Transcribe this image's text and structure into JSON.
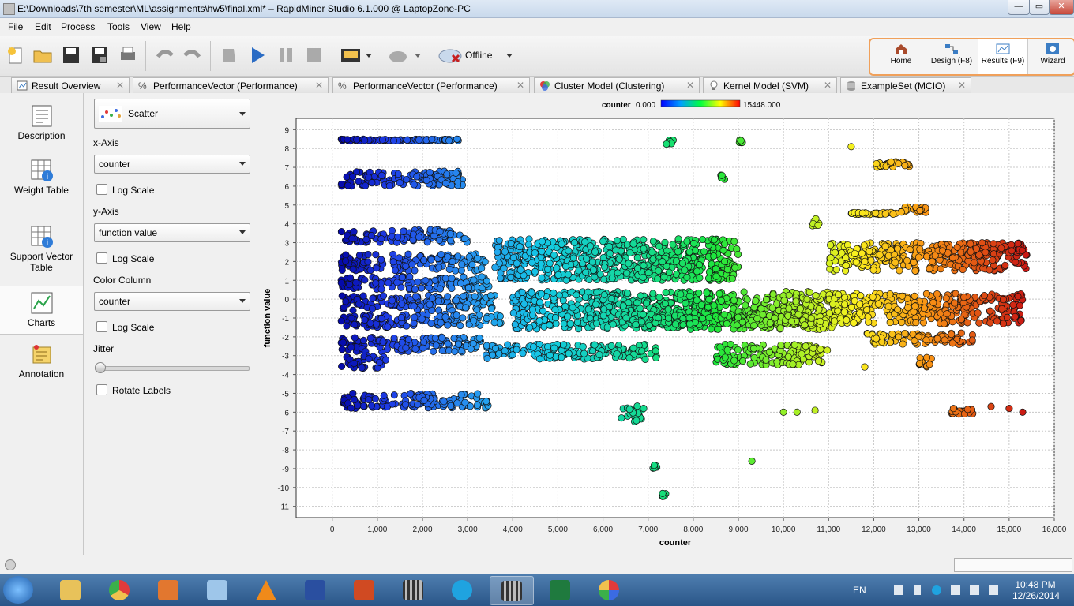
{
  "window": {
    "title": "E:\\Downloads\\7th semester\\ML\\assignments\\hw5\\final.xml* – RapidMiner Studio 6.1.000 @ LaptopZone-PC",
    "min": "—",
    "max": "▭",
    "close": "✕"
  },
  "menu": [
    "File",
    "Edit",
    "Process",
    "Tools",
    "View",
    "Help"
  ],
  "toolbar": {
    "offline_label": "Offline"
  },
  "perspectives": [
    {
      "label": "Home",
      "icon": "home-icon"
    },
    {
      "label": "Design (F8)",
      "icon": "design-icon"
    },
    {
      "label": "Results (F9)",
      "icon": "results-icon"
    },
    {
      "label": "Wizard",
      "icon": "wizard-icon"
    }
  ],
  "tabs": [
    {
      "label": "Result Overview"
    },
    {
      "label": "PerformanceVector (Performance)"
    },
    {
      "label": "PerformanceVector (Performance)"
    },
    {
      "label": "Cluster Model (Clustering)"
    },
    {
      "label": "Kernel Model (SVM)"
    },
    {
      "label": "ExampleSet (MCIO)"
    }
  ],
  "nav": [
    {
      "label": "Description"
    },
    {
      "label": "Weight Table"
    },
    {
      "label": "Support Vector Table"
    },
    {
      "label": "Charts"
    },
    {
      "label": "Annotation"
    }
  ],
  "settings": {
    "chart_type": "Scatter",
    "x_axis_label": "x-Axis",
    "x_axis_value": "counter",
    "x_log_label": "Log Scale",
    "y_axis_label": "y-Axis",
    "y_axis_value": "function value",
    "y_log_label": "Log Scale",
    "color_label": "Color Column",
    "color_value": "counter",
    "color_log_label": "Log Scale",
    "jitter_label": "Jitter",
    "jitter_value": 0,
    "rotate_label": "Rotate Labels"
  },
  "colors": {
    "accent": "#f0a05a"
  },
  "chart_data": {
    "type": "scatter",
    "xlabel": "counter",
    "ylabel": "function value",
    "xlim": [
      -800,
      16000
    ],
    "ylim": [
      -11.6,
      9.6
    ],
    "xticks": [
      0,
      1000,
      2000,
      3000,
      4000,
      5000,
      6000,
      7000,
      8000,
      9000,
      10000,
      11000,
      12000,
      13000,
      14000,
      15000,
      16000
    ],
    "xtick_labels": [
      "0",
      "1,000",
      "2,000",
      "3,000",
      "4,000",
      "5,000",
      "6,000",
      "7,000",
      "8,000",
      "9,000",
      "10,000",
      "11,000",
      "12,000",
      "13,000",
      "14,000",
      "15,000",
      "16,000"
    ],
    "yticks": [
      9,
      8,
      7,
      6,
      5,
      4,
      3,
      2,
      1,
      0,
      -1,
      -2,
      -3,
      -4,
      -5,
      -6,
      -7,
      -8,
      -9,
      -10,
      -11
    ],
    "grid": true,
    "color_legend": {
      "title": "counter",
      "min_label": "0.000",
      "max_label": "15448.000",
      "min": 0,
      "max": 15448
    },
    "clusters": [
      {
        "x": [
          200,
          2800
        ],
        "y": [
          8.4,
          8.5
        ]
      },
      {
        "x": [
          200,
          2900
        ],
        "y": [
          6.0,
          6.8
        ]
      },
      {
        "x": [
          200,
          3000
        ],
        "y": [
          3.0,
          3.7
        ]
      },
      {
        "x": [
          200,
          3400
        ],
        "y": [
          1.5,
          2.4
        ]
      },
      {
        "x": [
          200,
          3500
        ],
        "y": [
          0.5,
          1.2
        ]
      },
      {
        "x": [
          200,
          3600
        ],
        "y": [
          -0.6,
          0.2
        ]
      },
      {
        "x": [
          200,
          3800
        ],
        "y": [
          -1.5,
          -0.8
        ]
      },
      {
        "x": [
          200,
          3300
        ],
        "y": [
          -2.8,
          -2.0
        ]
      },
      {
        "x": [
          200,
          1200
        ],
        "y": [
          -3.7,
          -3.0
        ]
      },
      {
        "x": [
          200,
          3500
        ],
        "y": [
          -5.8,
          -5.0
        ]
      },
      {
        "x": [
          3400,
          7200
        ],
        "y": [
          -3.2,
          -2.4
        ]
      },
      {
        "x": [
          3600,
          9000
        ],
        "y": [
          1.0,
          3.2
        ]
      },
      {
        "x": [
          4000,
          11200
        ],
        "y": [
          -1.6,
          0.4
        ]
      },
      {
        "x": [
          6200,
          11000
        ],
        "y": [
          -1.4,
          -0.8
        ]
      },
      {
        "x": [
          8500,
          11000
        ],
        "y": [
          -3.5,
          -2.4
        ]
      },
      {
        "x": [
          7400,
          7600
        ],
        "y": [
          8.2,
          8.5
        ]
      },
      {
        "x": [
          9000,
          9100
        ],
        "y": [
          8.3,
          8.5
        ]
      },
      {
        "x": [
          8600,
          8700
        ],
        "y": [
          6.3,
          6.7
        ]
      },
      {
        "x": [
          6400,
          6900
        ],
        "y": [
          -6.5,
          -5.6
        ]
      },
      {
        "x": [
          7100,
          7200
        ],
        "y": [
          -9.0,
          -8.8
        ]
      },
      {
        "x": [
          7300,
          7400
        ],
        "y": [
          -10.5,
          -10.3
        ]
      },
      {
        "x": [
          11000,
          15400
        ],
        "y": [
          1.5,
          3.0
        ]
      },
      {
        "x": [
          11000,
          15300
        ],
        "y": [
          -1.3,
          0.3
        ]
      },
      {
        "x": [
          11800,
          14200
        ],
        "y": [
          -2.4,
          -1.8
        ]
      },
      {
        "x": [
          13500,
          15300
        ],
        "y": [
          2.4,
          3.0
        ]
      },
      {
        "x": [
          13700,
          14200
        ],
        "y": [
          -6.1,
          -5.8
        ]
      },
      {
        "x": [
          12600,
          13200
        ],
        "y": [
          4.5,
          4.9
        ]
      },
      {
        "x": [
          11500,
          12500
        ],
        "y": [
          4.5,
          4.6
        ]
      },
      {
        "x": [
          12000,
          12800
        ],
        "y": [
          7.0,
          7.3
        ]
      },
      {
        "x": [
          10600,
          10800
        ],
        "y": [
          3.8,
          4.3
        ]
      },
      {
        "x": [
          13000,
          13300
        ],
        "y": [
          -3.6,
          -3.1
        ]
      }
    ],
    "points": [
      [
        11500,
        8.1
      ],
      [
        9300,
        -8.6
      ],
      [
        10000,
        -6.0
      ],
      [
        10300,
        -6.0
      ],
      [
        10700,
        -5.9
      ],
      [
        14600,
        -5.7
      ],
      [
        15000,
        -5.8
      ],
      [
        15300,
        -6.0
      ],
      [
        11800,
        -3.6
      ]
    ]
  }
}
